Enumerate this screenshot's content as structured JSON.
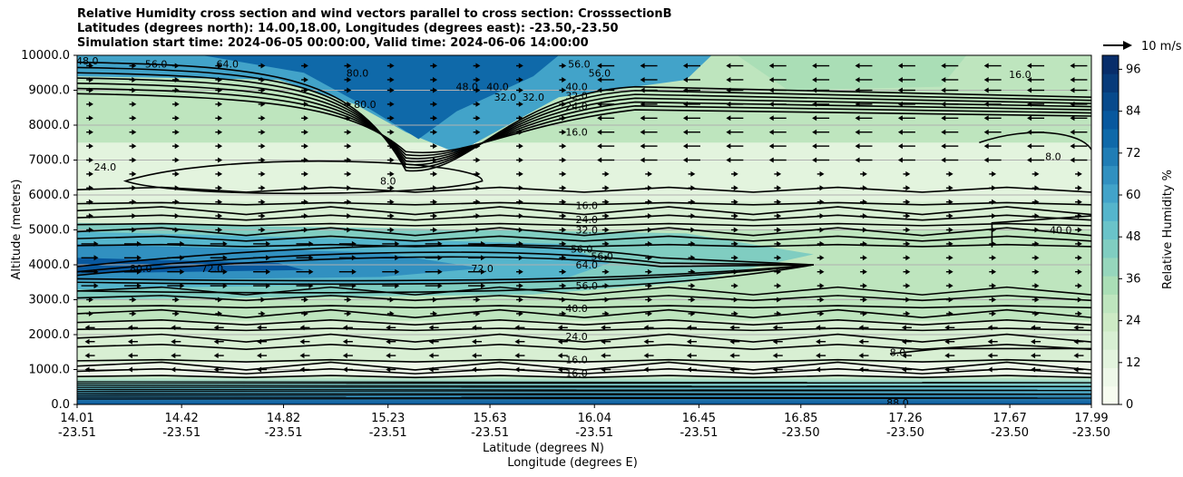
{
  "chart_data": {
    "type": "heatmap",
    "title_lines": [
      "Relative Humidity cross section and wind vectors parallel to cross section: CrosssectionB",
      "Latitudes (degrees north): 14.00,18.00, Longitudes (degrees east): -23.50,-23.50",
      "Simulation start time: 2024-06-05 00:00:00, Valid time: 2024-06-06 14:00:00"
    ],
    "ylabel": "Altitude (meters)",
    "xlabel_line1": "Latitude (degrees N)",
    "xlabel_line2": "Longitude (degrees E)",
    "ylim": [
      0,
      10000
    ],
    "y_ticks": [
      "0.0",
      "1000.0",
      "2000.0",
      "3000.0",
      "4000.0",
      "5000.0",
      "6000.0",
      "7000.0",
      "8000.0",
      "9000.0",
      "10000.0"
    ],
    "x_ticks": [
      {
        "lat": "14.01",
        "lon": "-23.51"
      },
      {
        "lat": "14.42",
        "lon": "-23.51"
      },
      {
        "lat": "14.82",
        "lon": "-23.51"
      },
      {
        "lat": "15.23",
        "lon": "-23.51"
      },
      {
        "lat": "15.63",
        "lon": "-23.51"
      },
      {
        "lat": "16.04",
        "lon": "-23.51"
      },
      {
        "lat": "16.45",
        "lon": "-23.51"
      },
      {
        "lat": "16.85",
        "lon": "-23.50"
      },
      {
        "lat": "17.26",
        "lon": "-23.50"
      },
      {
        "lat": "17.67",
        "lon": "-23.50"
      },
      {
        "lat": "17.99",
        "lon": "-23.50"
      }
    ],
    "grid": "horizontal",
    "colorbar": {
      "label": "Relative Humidity %",
      "ticks": [
        "0",
        "12",
        "24",
        "36",
        "48",
        "60",
        "72",
        "84",
        "96"
      ],
      "range": [
        0,
        100
      ],
      "colors": [
        "#f7fcf0",
        "#eef8e9",
        "#e3f4de",
        "#d8efd3",
        "#cdeac5",
        "#bee5be",
        "#aadeb6",
        "#96d6bc",
        "#80cdc1",
        "#6ac3c9",
        "#55b5cc",
        "#42a3c9",
        "#3190c0",
        "#207db5",
        "#0f69a9",
        "#08589e",
        "#084a8c",
        "#083b7a",
        "#082d6a"
      ]
    },
    "quiver_key": {
      "label": "10 m/s",
      "speed": 10
    },
    "contour_labels": [
      {
        "text": "48.0",
        "lat": 14.05,
        "alt": 9850
      },
      {
        "text": "56.0",
        "lat": 14.32,
        "alt": 9750
      },
      {
        "text": "64.0",
        "lat": 14.6,
        "alt": 9750
      },
      {
        "text": "80.0",
        "lat": 15.11,
        "alt": 9500
      },
      {
        "text": "80.0",
        "lat": 15.14,
        "alt": 8600
      },
      {
        "text": "48.0",
        "lat": 15.54,
        "alt": 9100
      },
      {
        "text": "40.0",
        "lat": 15.66,
        "alt": 9100
      },
      {
        "text": "32.0",
        "lat": 15.69,
        "alt": 8800
      },
      {
        "text": "32.0",
        "lat": 15.8,
        "alt": 8800
      },
      {
        "text": "40.0",
        "lat": 15.97,
        "alt": 9100
      },
      {
        "text": "32.0",
        "lat": 15.97,
        "alt": 8850
      },
      {
        "text": "24.0",
        "lat": 15.97,
        "alt": 8550
      },
      {
        "text": "16.0",
        "lat": 15.97,
        "alt": 7800
      },
      {
        "text": "56.0",
        "lat": 15.98,
        "alt": 9750
      },
      {
        "text": "56.0",
        "lat": 16.06,
        "alt": 9500
      },
      {
        "text": "16.0",
        "lat": 17.71,
        "alt": 9450
      },
      {
        "text": "24.0",
        "lat": 14.12,
        "alt": 6800
      },
      {
        "text": "8.0",
        "lat": 15.23,
        "alt": 6400
      },
      {
        "text": "8.0",
        "lat": 17.84,
        "alt": 7100
      },
      {
        "text": "16.0",
        "lat": 16.01,
        "alt": 5700
      },
      {
        "text": "24.0",
        "lat": 16.01,
        "alt": 5300
      },
      {
        "text": "32.0",
        "lat": 16.01,
        "alt": 5000
      },
      {
        "text": "40.0",
        "lat": 17.87,
        "alt": 5000
      },
      {
        "text": "56.0",
        "lat": 15.99,
        "alt": 4450
      },
      {
        "text": "56.0",
        "lat": 16.07,
        "alt": 4250
      },
      {
        "text": "64.0",
        "lat": 16.01,
        "alt": 4000
      },
      {
        "text": "72.0",
        "lat": 15.6,
        "alt": 3900
      },
      {
        "text": "80.0",
        "lat": 14.26,
        "alt": 3900
      },
      {
        "text": "72.0",
        "lat": 14.54,
        "alt": 3900
      },
      {
        "text": "56.0",
        "lat": 16.01,
        "alt": 3400
      },
      {
        "text": "40.0",
        "lat": 15.97,
        "alt": 2750
      },
      {
        "text": "24.0",
        "lat": 15.97,
        "alt": 1950
      },
      {
        "text": "16.0",
        "lat": 15.97,
        "alt": 1280
      },
      {
        "text": "16.0",
        "lat": 15.97,
        "alt": 900
      },
      {
        "text": "8.0",
        "lat": 17.23,
        "alt": 1500
      },
      {
        "text": "88.0",
        "lat": 17.23,
        "alt": 50
      }
    ]
  }
}
